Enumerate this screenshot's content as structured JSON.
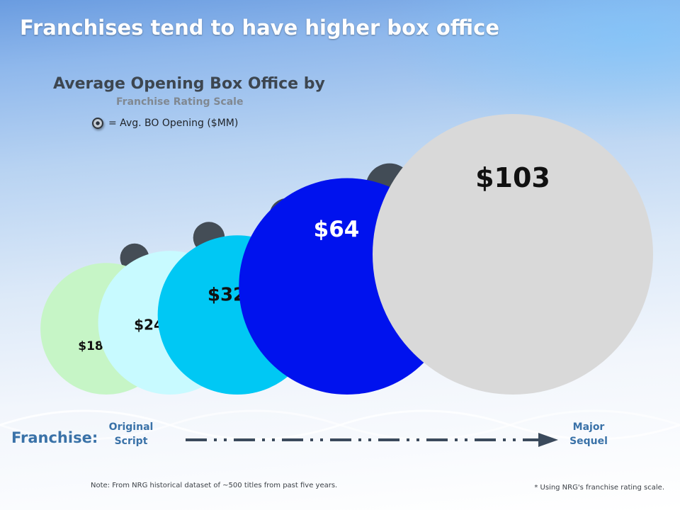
{
  "title": "Franchises tend to have higher box office",
  "subtitle": "Average Opening Box Office by",
  "subtitle2": "Franchise Rating Scale",
  "legend": {
    "label": "= Avg. BO Opening ($MM)",
    "icon": "bubble-icon"
  },
  "axis": {
    "label": "Franchise:",
    "start_label": "Original\nScript",
    "end_label": "Major\nSequel"
  },
  "note": "Note: From NRG historical dataset of ~500 titles from past five years.",
  "footnote": "* Using NRG's franchise rating scale.",
  "chart_data": {
    "type": "bubble",
    "values": [
      18,
      24,
      32,
      64,
      103
    ],
    "labels": [
      "$18",
      "$24",
      "$32",
      "$64",
      "$103"
    ],
    "colors": [
      "#c6f5c6",
      "#c8faff",
      "#00c8f4",
      "#0012ee",
      "#d9d9d9"
    ],
    "label_colors": [
      "#111111",
      "#111111",
      "#111111",
      "#ffffff",
      "#111111"
    ]
  }
}
